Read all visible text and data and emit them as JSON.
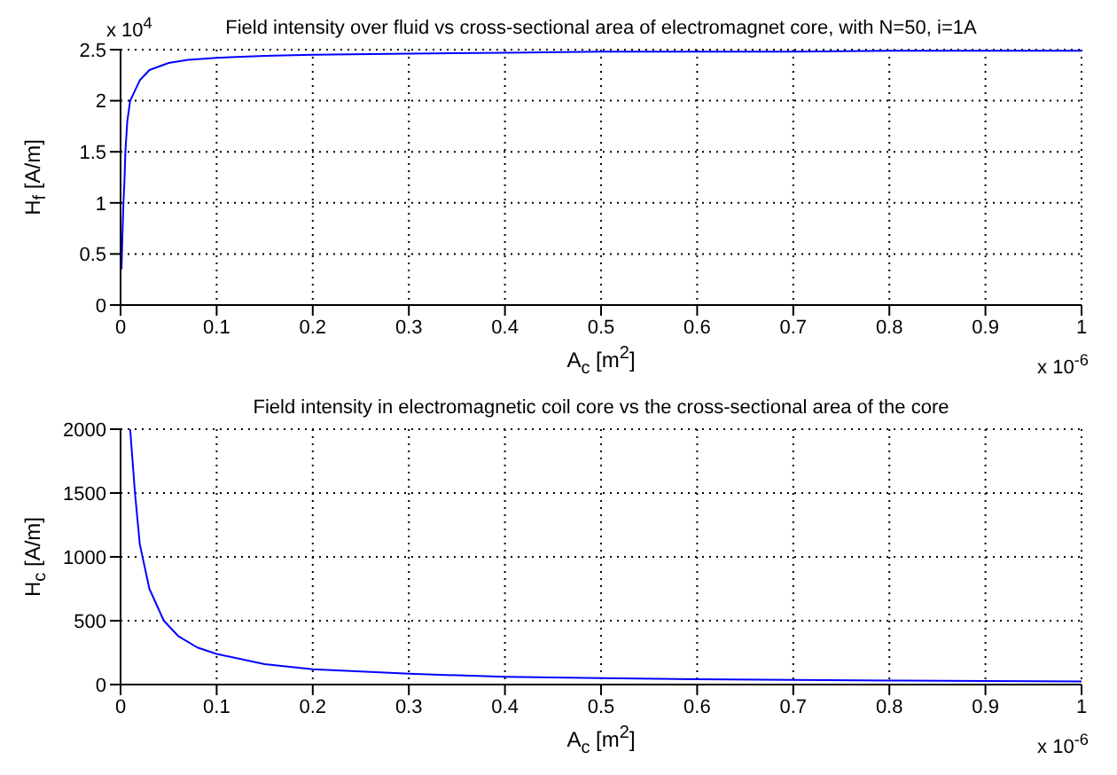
{
  "chart_data": [
    {
      "type": "line",
      "title": "Field intensity over fluid vs cross-sectional area of electromagnet core, with N=50, i=1A",
      "xlabel": "A$_{c}$ [m$^{2}$]",
      "ylabel": "H$_{f}$ [A/m]",
      "annotations": [
        "x 10$^{4}$",
        "x 10$^{-6}$"
      ],
      "x": [
        0.001,
        0.002,
        0.003,
        0.004,
        0.005,
        0.007,
        0.01,
        0.015,
        0.02,
        0.03,
        0.05,
        0.07,
        0.1,
        0.15,
        0.2,
        0.3,
        0.4,
        0.5,
        0.6,
        0.7,
        0.8,
        0.9,
        1.0
      ],
      "values": [
        0.35,
        0.7,
        1.0,
        1.2,
        1.5,
        1.8,
        2.0,
        2.1,
        2.2,
        2.3,
        2.37,
        2.4,
        2.42,
        2.44,
        2.45,
        2.46,
        2.47,
        2.48,
        2.48,
        2.48,
        2.49,
        2.49,
        2.49
      ],
      "color": "#0000ff",
      "xlim": [
        0,
        1
      ],
      "xticks": [
        0,
        0.1,
        0.2,
        0.3,
        0.4,
        0.5,
        0.6,
        0.7,
        0.8,
        0.9,
        1
      ],
      "ylim": [
        0,
        2.5
      ],
      "yticks": [
        0,
        0.5,
        1,
        1.5,
        2,
        2.5
      ],
      "grid": true
    },
    {
      "type": "line",
      "title": "Field intensity in electromagnetic coil core vs the cross-sectional area of the core",
      "xlabel": "A$_{c}$ [m$^{2}$]",
      "ylabel": "H$_{c}$ [A/m]",
      "annotations": [
        "x 10$^{-6}$"
      ],
      "x": [
        0.01,
        0.015,
        0.02,
        0.03,
        0.045,
        0.06,
        0.08,
        0.1,
        0.15,
        0.2,
        0.3,
        0.4,
        0.5,
        0.6,
        0.7,
        0.8,
        0.9,
        1.0
      ],
      "values": [
        2000,
        1500,
        1100,
        750,
        500,
        380,
        290,
        240,
        160,
        120,
        85,
        60,
        50,
        42,
        36,
        32,
        28,
        25
      ],
      "color": "#0000ff",
      "xlim": [
        0,
        1
      ],
      "xticks": [
        0,
        0.1,
        0.2,
        0.3,
        0.4,
        0.5,
        0.6,
        0.7,
        0.8,
        0.9,
        1
      ],
      "ylim": [
        0,
        2000
      ],
      "yticks": [
        0,
        500,
        1000,
        1500,
        2000
      ],
      "grid": true
    }
  ]
}
